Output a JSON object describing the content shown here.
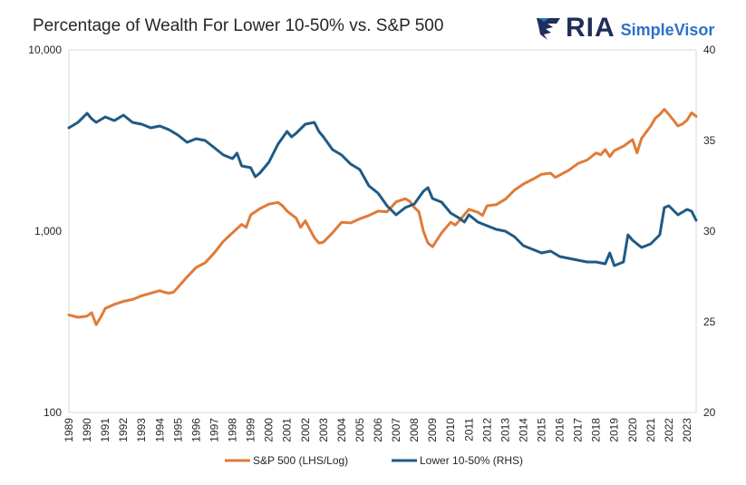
{
  "title": "Percentage of Wealth For Lower 10-50% vs. S&P 500",
  "logo": {
    "wordmark": "RIA",
    "product": "SimpleVisor"
  },
  "chart_data": {
    "type": "line",
    "grid": false,
    "legend_position": "bottom",
    "left_axis": {
      "scale": "log",
      "range": [
        100,
        10000
      ],
      "ticks": [
        100,
        1000,
        10000
      ],
      "tick_labels": [
        "100",
        "1,000",
        "10,000"
      ]
    },
    "right_axis": {
      "scale": "linear",
      "range": [
        20,
        40
      ],
      "ticks": [
        20,
        25,
        30,
        35,
        40
      ],
      "tick_labels": [
        "20",
        "25",
        "30",
        "35",
        "40"
      ]
    },
    "x_axis": {
      "range": [
        1989.0,
        2023.5
      ],
      "tick_labels": [
        "1989",
        "1990",
        "1991",
        "1992",
        "1993",
        "1994",
        "1995",
        "1996",
        "1997",
        "1998",
        "1999",
        "2000",
        "2001",
        "2002",
        "2003",
        "2004",
        "2005",
        "2006",
        "2007",
        "2008",
        "2009",
        "2010",
        "2011",
        "2012",
        "2013",
        "2014",
        "2015",
        "2016",
        "2017",
        "2018",
        "2019",
        "2020",
        "2021",
        "2022",
        "2023"
      ]
    },
    "series": [
      {
        "name": "S&P 500 (LHS/Log)",
        "axis": "left",
        "color": "#e07b39",
        "points": [
          [
            1989.0,
            345
          ],
          [
            1989.5,
            335
          ],
          [
            1990.0,
            340
          ],
          [
            1990.25,
            355
          ],
          [
            1990.5,
            305
          ],
          [
            1990.75,
            335
          ],
          [
            1991.0,
            375
          ],
          [
            1991.5,
            395
          ],
          [
            1992.0,
            410
          ],
          [
            1992.5,
            420
          ],
          [
            1993.0,
            440
          ],
          [
            1993.5,
            455
          ],
          [
            1994.0,
            470
          ],
          [
            1994.25,
            460
          ],
          [
            1994.5,
            455
          ],
          [
            1994.75,
            460
          ],
          [
            1995.0,
            490
          ],
          [
            1995.5,
            560
          ],
          [
            1996.0,
            630
          ],
          [
            1996.5,
            670
          ],
          [
            1997.0,
            760
          ],
          [
            1997.5,
            880
          ],
          [
            1998.0,
            980
          ],
          [
            1998.5,
            1090
          ],
          [
            1998.75,
            1050
          ],
          [
            1999.0,
            1230
          ],
          [
            1999.5,
            1330
          ],
          [
            2000.0,
            1410
          ],
          [
            2000.5,
            1440
          ],
          [
            2000.75,
            1380
          ],
          [
            2001.0,
            1290
          ],
          [
            2001.5,
            1180
          ],
          [
            2001.75,
            1050
          ],
          [
            2002.0,
            1140
          ],
          [
            2002.5,
            920
          ],
          [
            2002.75,
            860
          ],
          [
            2003.0,
            870
          ],
          [
            2003.5,
            980
          ],
          [
            2004.0,
            1120
          ],
          [
            2004.5,
            1110
          ],
          [
            2005.0,
            1170
          ],
          [
            2005.5,
            1220
          ],
          [
            2006.0,
            1290
          ],
          [
            2006.5,
            1280
          ],
          [
            2007.0,
            1450
          ],
          [
            2007.5,
            1510
          ],
          [
            2007.75,
            1460
          ],
          [
            2008.0,
            1350
          ],
          [
            2008.25,
            1280
          ],
          [
            2008.5,
            1000
          ],
          [
            2008.75,
            860
          ],
          [
            2009.0,
            820
          ],
          [
            2009.5,
            980
          ],
          [
            2010.0,
            1120
          ],
          [
            2010.25,
            1080
          ],
          [
            2010.5,
            1150
          ],
          [
            2011.0,
            1320
          ],
          [
            2011.5,
            1270
          ],
          [
            2011.75,
            1220
          ],
          [
            2012.0,
            1380
          ],
          [
            2012.5,
            1400
          ],
          [
            2013.0,
            1500
          ],
          [
            2013.5,
            1680
          ],
          [
            2014.0,
            1820
          ],
          [
            2014.5,
            1930
          ],
          [
            2015.0,
            2060
          ],
          [
            2015.5,
            2090
          ],
          [
            2015.75,
            1980
          ],
          [
            2016.0,
            2040
          ],
          [
            2016.5,
            2170
          ],
          [
            2017.0,
            2360
          ],
          [
            2017.5,
            2470
          ],
          [
            2018.0,
            2700
          ],
          [
            2018.25,
            2640
          ],
          [
            2018.5,
            2820
          ],
          [
            2018.75,
            2580
          ],
          [
            2019.0,
            2780
          ],
          [
            2019.5,
            2940
          ],
          [
            2020.0,
            3200
          ],
          [
            2020.25,
            2700
          ],
          [
            2020.5,
            3250
          ],
          [
            2021.0,
            3800
          ],
          [
            2021.25,
            4200
          ],
          [
            2021.5,
            4400
          ],
          [
            2021.75,
            4700
          ],
          [
            2022.0,
            4400
          ],
          [
            2022.25,
            4100
          ],
          [
            2022.5,
            3800
          ],
          [
            2022.75,
            3900
          ],
          [
            2023.0,
            4100
          ],
          [
            2023.25,
            4500
          ],
          [
            2023.5,
            4300
          ]
        ]
      },
      {
        "name": "Lower 10-50% (RHS)",
        "axis": "right",
        "color": "#1f5a85",
        "points": [
          [
            1989.0,
            35.7
          ],
          [
            1989.5,
            36.0
          ],
          [
            1990.0,
            36.5
          ],
          [
            1990.25,
            36.2
          ],
          [
            1990.5,
            36.0
          ],
          [
            1991.0,
            36.3
          ],
          [
            1991.5,
            36.1
          ],
          [
            1992.0,
            36.4
          ],
          [
            1992.5,
            36.0
          ],
          [
            1993.0,
            35.9
          ],
          [
            1993.5,
            35.7
          ],
          [
            1994.0,
            35.8
          ],
          [
            1994.5,
            35.6
          ],
          [
            1995.0,
            35.3
          ],
          [
            1995.5,
            34.9
          ],
          [
            1996.0,
            35.1
          ],
          [
            1996.5,
            35.0
          ],
          [
            1997.0,
            34.6
          ],
          [
            1997.5,
            34.2
          ],
          [
            1998.0,
            34.0
          ],
          [
            1998.25,
            34.3
          ],
          [
            1998.5,
            33.6
          ],
          [
            1999.0,
            33.5
          ],
          [
            1999.25,
            33.0
          ],
          [
            1999.5,
            33.2
          ],
          [
            2000.0,
            33.8
          ],
          [
            2000.5,
            34.8
          ],
          [
            2001.0,
            35.5
          ],
          [
            2001.25,
            35.2
          ],
          [
            2001.5,
            35.4
          ],
          [
            2002.0,
            35.9
          ],
          [
            2002.5,
            36.0
          ],
          [
            2002.75,
            35.5
          ],
          [
            2003.0,
            35.2
          ],
          [
            2003.5,
            34.5
          ],
          [
            2004.0,
            34.2
          ],
          [
            2004.5,
            33.7
          ],
          [
            2005.0,
            33.4
          ],
          [
            2005.5,
            32.5
          ],
          [
            2006.0,
            32.1
          ],
          [
            2006.5,
            31.4
          ],
          [
            2007.0,
            30.9
          ],
          [
            2007.5,
            31.3
          ],
          [
            2008.0,
            31.5
          ],
          [
            2008.5,
            32.2
          ],
          [
            2008.75,
            32.4
          ],
          [
            2009.0,
            31.8
          ],
          [
            2009.5,
            31.6
          ],
          [
            2010.0,
            31.0
          ],
          [
            2010.5,
            30.7
          ],
          [
            2010.75,
            30.5
          ],
          [
            2011.0,
            30.9
          ],
          [
            2011.5,
            30.5
          ],
          [
            2012.0,
            30.3
          ],
          [
            2012.5,
            30.1
          ],
          [
            2013.0,
            30.0
          ],
          [
            2013.5,
            29.7
          ],
          [
            2014.0,
            29.2
          ],
          [
            2014.5,
            29.0
          ],
          [
            2015.0,
            28.8
          ],
          [
            2015.5,
            28.9
          ],
          [
            2016.0,
            28.6
          ],
          [
            2016.5,
            28.5
          ],
          [
            2017.0,
            28.4
          ],
          [
            2017.5,
            28.3
          ],
          [
            2018.0,
            28.3
          ],
          [
            2018.5,
            28.2
          ],
          [
            2018.75,
            28.8
          ],
          [
            2019.0,
            28.1
          ],
          [
            2019.5,
            28.3
          ],
          [
            2019.75,
            29.8
          ],
          [
            2020.0,
            29.5
          ],
          [
            2020.5,
            29.1
          ],
          [
            2021.0,
            29.3
          ],
          [
            2021.5,
            29.8
          ],
          [
            2021.75,
            31.3
          ],
          [
            2022.0,
            31.4
          ],
          [
            2022.5,
            30.9
          ],
          [
            2023.0,
            31.2
          ],
          [
            2023.25,
            31.1
          ],
          [
            2023.5,
            30.6
          ]
        ]
      }
    ]
  }
}
